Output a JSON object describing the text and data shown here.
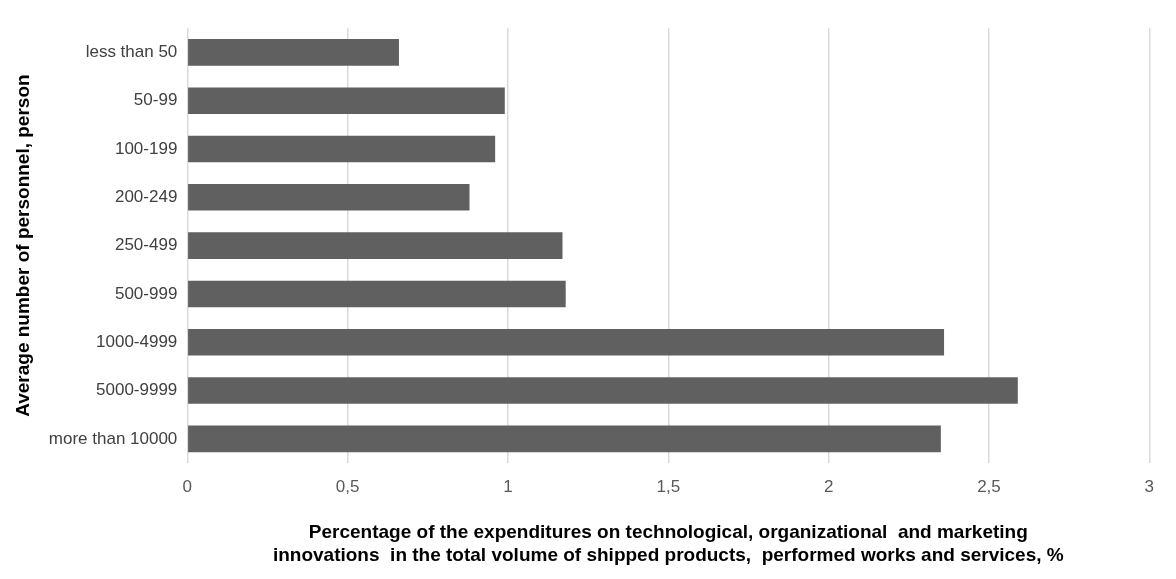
{
  "chart_data": {
    "type": "bar",
    "orientation": "horizontal",
    "categories": [
      "less than 50",
      "50-99",
      "100-199",
      "200-249",
      "250-499",
      "500-999",
      "1000-4999",
      "5000-9999",
      "more than 10000"
    ],
    "values": [
      0.66,
      0.99,
      0.96,
      0.88,
      1.17,
      1.18,
      2.36,
      2.59,
      2.35
    ],
    "color": "#606060",
    "xlim": [
      0,
      3
    ],
    "xticks": [
      0,
      {
        "value": 0.5,
        "label": "0,5"
      },
      1,
      {
        "value": 1.5,
        "label": "1,5"
      },
      2,
      {
        "value": 2.5,
        "label": "2,5"
      },
      3
    ],
    "xlabel": "Percentage of the expenditures on technological, organizational  and marketing\ninnovations  in the total volume of shipped products,  performed works and services, %",
    "ylabel": "Average number of personnel, person",
    "grid": "x",
    "legend": false
  }
}
